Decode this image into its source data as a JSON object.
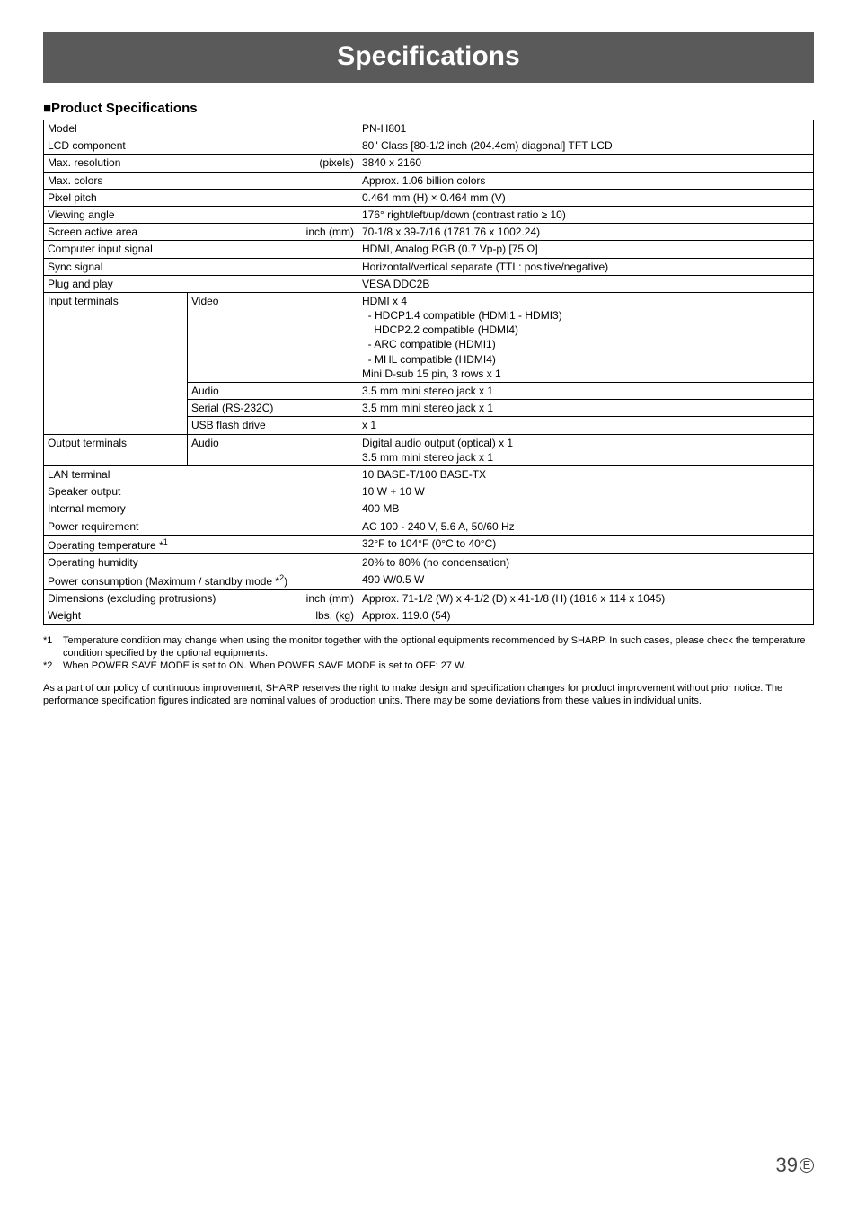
{
  "page": {
    "title": "Specifications",
    "section_head": "■Product Specifications",
    "number": "39",
    "lang_mark": "E"
  },
  "spec": {
    "rows": [
      {
        "label": "Model",
        "value": "PN-H801"
      },
      {
        "label": "LCD component",
        "value": "80\" Class [80-1/2 inch (204.4cm) diagonal] TFT LCD"
      },
      {
        "label": "Max. resolution",
        "unit": "(pixels)",
        "value": "3840 x 2160"
      },
      {
        "label": "Max. colors",
        "value": "Approx. 1.06 billion colors"
      },
      {
        "label": "Pixel pitch",
        "value": "0.464 mm (H) × 0.464 mm (V)"
      },
      {
        "label": "Viewing angle",
        "value": "176° right/left/up/down (contrast ratio ≥ 10)"
      },
      {
        "label": "Screen active area",
        "unit": "inch (mm)",
        "value": "70-1/8 x 39-7/16 (1781.76 x 1002.24)"
      },
      {
        "label": "Computer input signal",
        "value": "HDMI, Analog RGB (0.7 Vp-p) [75 Ω]"
      },
      {
        "label": "Sync signal",
        "value": "Horizontal/vertical separate (TTL: positive/negative)"
      },
      {
        "label": "Plug and play",
        "value": "VESA DDC2B"
      }
    ],
    "input_terminals": {
      "label": "Input terminals",
      "video": {
        "sub": "Video",
        "lines": [
          "HDMI x 4",
          "  - HDCP1.4 compatible (HDMI1 - HDMI3)",
          "    HDCP2.2 compatible (HDMI4)",
          "  - ARC compatible (HDMI1)",
          "  - MHL compatible (HDMI4)",
          "Mini D-sub 15 pin, 3 rows x 1"
        ]
      },
      "audio": {
        "sub": "Audio",
        "value": "3.5 mm mini stereo jack x 1"
      },
      "serial": {
        "sub": "Serial (RS-232C)",
        "value": "3.5 mm mini stereo jack x 1"
      },
      "usb": {
        "sub": "USB flash drive",
        "value": "x 1"
      }
    },
    "output_terminals": {
      "label": "Output terminals",
      "audio_sub": "Audio",
      "lines": [
        "Digital audio output (optical) x 1",
        "3.5 mm mini stereo jack x 1"
      ]
    },
    "rows2": [
      {
        "label": "LAN terminal",
        "value": "10 BASE-T/100 BASE-TX"
      },
      {
        "label": "Speaker output",
        "value": "10 W + 10 W"
      },
      {
        "label": "Internal memory",
        "value": "400 MB"
      },
      {
        "label": "Power requirement",
        "value": "AC 100 - 240 V, 5.6 A, 50/60 Hz"
      },
      {
        "label": "Operating temperature *",
        "sup": "1",
        "value": "32°F to 104°F (0°C to 40°C)"
      },
      {
        "label": "Operating humidity",
        "value": "20% to 80% (no condensation)"
      },
      {
        "label": "Power consumption (Maximum / standby mode *",
        "sup": "2",
        "label_tail": ")",
        "value": "490 W/0.5 W"
      },
      {
        "label": "Dimensions (excluding protrusions)",
        "unit": "inch (mm)",
        "value": "Approx. 71-1/2 (W) x 4-1/2 (D) x 41-1/8 (H) (1816 x 114 x 1045)"
      },
      {
        "label": "Weight",
        "unit": "lbs. (kg)",
        "value": "Approx. 119.0 (54)"
      }
    ]
  },
  "footnotes": [
    {
      "num": "*1",
      "text": "Temperature condition may change when using the monitor together with the optional equipments recommended by SHARP. In such cases, please check the temperature condition specified by the optional equipments."
    },
    {
      "num": "*2",
      "text": "When POWER SAVE MODE is set to ON. When POWER SAVE MODE is set to OFF: 27 W."
    }
  ],
  "disclaimer": "As a part of our policy of continuous improvement, SHARP reserves the right to make design and specification changes for product improvement without prior notice. The performance specification figures indicated are nominal values of production units. There may be some deviations from these values in individual units."
}
